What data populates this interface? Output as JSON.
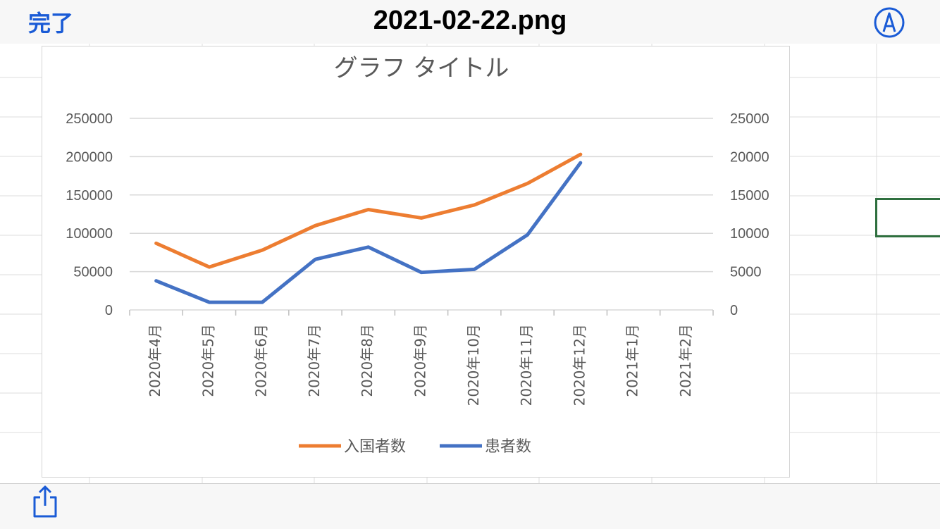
{
  "header": {
    "done_label": "完了",
    "file_name": "2021-02-22.png"
  },
  "icons": {
    "markup": "markup-pen-icon",
    "share": "share-icon"
  },
  "colors": {
    "accent": "#1a5bd6",
    "series1": "#ed7d31",
    "series2": "#4472c4",
    "selection": "#2e6f3e"
  },
  "chart_data": {
    "type": "line",
    "title": "グラフ タイトル",
    "categories": [
      "2020年4月",
      "2020年5月",
      "2020年6月",
      "2020年7月",
      "2020年8月",
      "2020年9月",
      "2020年10月",
      "2020年11月",
      "2020年12月",
      "2021年1月",
      "2021年2月"
    ],
    "series": [
      {
        "name": "入国者数",
        "axis": "left",
        "color": "#ed7d31",
        "values": [
          87000,
          56000,
          78000,
          110000,
          131000,
          120000,
          137000,
          165000,
          203000,
          null,
          null
        ]
      },
      {
        "name": "患者数",
        "axis": "right",
        "color": "#4472c4",
        "values": [
          3800,
          1000,
          1000,
          6600,
          8200,
          4900,
          5300,
          9800,
          19200,
          null,
          null
        ]
      }
    ],
    "y_left": {
      "ylim": [
        0,
        250000
      ],
      "ticks": [
        "0",
        "50000",
        "100000",
        "150000",
        "200000",
        "250000"
      ]
    },
    "y_right": {
      "ylim": [
        0,
        25000
      ],
      "ticks": [
        "0",
        "5000",
        "10000",
        "15000",
        "20000",
        "25000"
      ]
    },
    "grid": true,
    "legend_position": "bottom"
  }
}
